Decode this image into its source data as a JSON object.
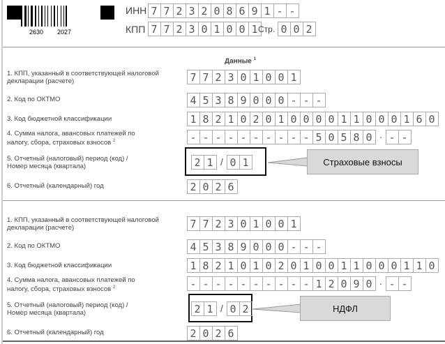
{
  "header": {
    "barcode_numbers": [
      "2630",
      "2027"
    ],
    "inn_label": "ИНН",
    "inn_cells": "7723208691--",
    "kpp_label": "КПП",
    "kpp_cells": "772301001",
    "page_label": "Стр.",
    "page_cells": "002"
  },
  "column_header": {
    "title": "Данные",
    "footnote": "1"
  },
  "row_labels": {
    "kpp": "1. КПП, указанный в соответствующей налоговой декларации (расчете)",
    "oktmo": "2. Код по ОКТМО",
    "kbk": "3. Код бюджетной классификации",
    "sum": "4. Сумма налога, авансовых платежей по налогу, сбора, страховых взносов",
    "sum_footnote": "2",
    "period": "5. Отчетный (налоговый) период (код) / Номер месяца (квартала)",
    "year": "6. Отчетный (календарный) год"
  },
  "sections": [
    {
      "kpp": "772301001",
      "oktmo": "45389000---",
      "kbk": "18210201000011000160",
      "sum_int": "----------50580",
      "sum_frac": "--",
      "period_code": "21",
      "period_month": "01",
      "year": "2026",
      "callout": "Страховые взносы"
    },
    {
      "kpp": "772301001",
      "oktmo": "45389000---",
      "kbk": "18210102010011000110",
      "sum_int": "----------12090",
      "sum_frac": "--",
      "period_code": "21",
      "period_month": "02",
      "year": "2026",
      "callout": "НДФЛ"
    }
  ]
}
